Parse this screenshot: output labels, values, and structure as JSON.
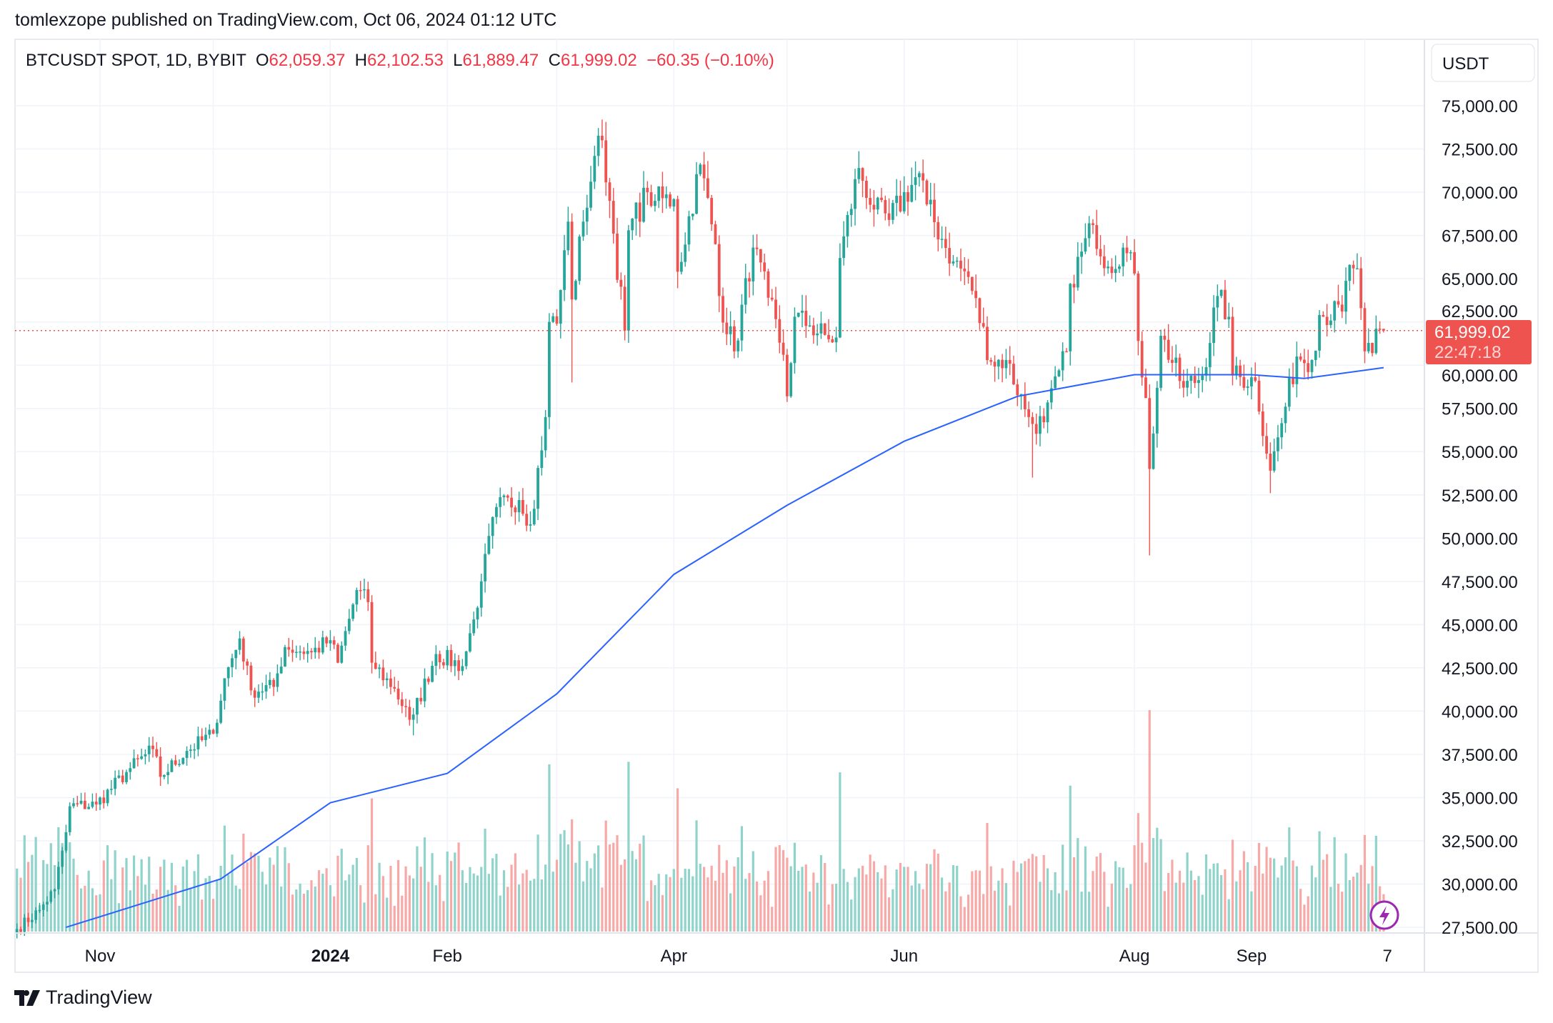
{
  "header": {
    "published": "tomlexzope published on TradingView.com, Oct 06, 2024 01:12 UTC"
  },
  "legend": {
    "symbol": "BTCUSDT SPOT, 1D, BYBIT",
    "open_label": "O",
    "open": "62,059.37",
    "high_label": "H",
    "high": "62,102.53",
    "low_label": "L",
    "low": "61,889.47",
    "close_label": "C",
    "close": "61,999.02",
    "change": "−60.35 (−0.10%)"
  },
  "price_axis": {
    "currency": "USDT",
    "last_price": "61,999.02",
    "countdown": "22:47:18"
  },
  "footer": {
    "brand": "TradingView"
  },
  "colors": {
    "up": "#26a69a",
    "down": "#ef5350",
    "ma": "#2962ff",
    "last_price_bg": "#ef5350",
    "volume_up": "#8fd3cb",
    "volume_down": "#f7a9a7"
  },
  "icons": {
    "logo": "tradingview-logo-icon",
    "lightning": "lightning-icon"
  },
  "chart_data": {
    "type": "candlestick",
    "symbol": "BTCUSDT",
    "interval": "1D",
    "ylim": [
      27500,
      76000
    ],
    "y_ticks": [
      "75,000.00",
      "72,500.00",
      "70,000.00",
      "67,500.00",
      "65,000.00",
      "62,500.00",
      "60,000.00",
      "57,500.00",
      "55,000.00",
      "52,500.00",
      "50,000.00",
      "47,500.00",
      "45,000.00",
      "42,500.00",
      "40,000.00",
      "37,500.00",
      "35,000.00",
      "32,500.00",
      "30,000.00",
      "27,500.00"
    ],
    "x_ticks": [
      {
        "label": "Nov",
        "date": "2023-11-01",
        "bold": false
      },
      {
        "label": "2024",
        "date": "2024-01-01",
        "bold": true
      },
      {
        "label": "Feb",
        "date": "2024-02-01",
        "bold": false
      },
      {
        "label": "Apr",
        "date": "2024-04-01",
        "bold": false
      },
      {
        "label": "Jun",
        "date": "2024-06-01",
        "bold": false
      },
      {
        "label": "Aug",
        "date": "2024-08-01",
        "bold": false
      },
      {
        "label": "Sep",
        "date": "2024-09-01",
        "bold": false
      },
      {
        "label": "7",
        "date": "2024-10-07",
        "bold": false
      }
    ],
    "grid": true,
    "close_anchors": [
      [
        "2023-10-10",
        27400
      ],
      [
        "2023-10-16",
        28500
      ],
      [
        "2023-10-20",
        29700
      ],
      [
        "2023-10-23",
        33000
      ],
      [
        "2023-10-24",
        34500
      ],
      [
        "2023-10-31",
        34600
      ],
      [
        "2023-11-09",
        36700
      ],
      [
        "2023-11-15",
        37800
      ],
      [
        "2023-11-17",
        36200
      ],
      [
        "2023-11-24",
        37700
      ],
      [
        "2023-12-01",
        38700
      ],
      [
        "2023-12-04",
        41900
      ],
      [
        "2023-12-08",
        44200
      ],
      [
        "2023-12-11",
        41200
      ],
      [
        "2023-12-17",
        41400
      ],
      [
        "2023-12-20",
        43700
      ],
      [
        "2023-12-27",
        43400
      ],
      [
        "2024-01-01",
        44100
      ],
      [
        "2024-01-03",
        42800
      ],
      [
        "2024-01-08",
        47000
      ],
      [
        "2024-01-11",
        46300
      ],
      [
        "2024-01-12",
        42800
      ],
      [
        "2024-01-18",
        41300
      ],
      [
        "2024-01-22",
        39500
      ],
      [
        "2024-01-23",
        39800
      ],
      [
        "2024-01-29",
        43300
      ],
      [
        "2024-02-05",
        42600
      ],
      [
        "2024-02-08",
        45300
      ],
      [
        "2024-02-10",
        47500
      ],
      [
        "2024-02-14",
        51800
      ],
      [
        "2024-02-20",
        52200
      ],
      [
        "2024-02-23",
        50800
      ],
      [
        "2024-02-27",
        57000
      ],
      [
        "2024-02-28",
        62500
      ],
      [
        "2024-03-01",
        62400
      ],
      [
        "2024-03-04",
        68300
      ],
      [
        "2024-03-05",
        63800
      ],
      [
        "2024-03-08",
        68300
      ],
      [
        "2024-03-11",
        72100
      ],
      [
        "2024-03-13",
        73000
      ],
      [
        "2024-03-15",
        69500
      ],
      [
        "2024-03-19",
        62000
      ],
      [
        "2024-03-20",
        67800
      ],
      [
        "2024-03-25",
        70000
      ],
      [
        "2024-03-27",
        69500
      ],
      [
        "2024-04-01",
        69600
      ],
      [
        "2024-04-02",
        65400
      ],
      [
        "2024-04-08",
        71600
      ],
      [
        "2024-04-12",
        67000
      ],
      [
        "2024-04-13",
        64000
      ],
      [
        "2024-04-17",
        60800
      ],
      [
        "2024-04-22",
        66800
      ],
      [
        "2024-04-26",
        63900
      ],
      [
        "2024-04-30",
        60600
      ],
      [
        "2024-05-01",
        58200
      ],
      [
        "2024-05-03",
        62800
      ],
      [
        "2024-05-07",
        62300
      ],
      [
        "2024-05-12",
        61500
      ],
      [
        "2024-05-14",
        61600
      ],
      [
        "2024-05-15",
        66200
      ],
      [
        "2024-05-20",
        71400
      ],
      [
        "2024-05-24",
        69000
      ],
      [
        "2024-05-28",
        68400
      ],
      [
        "2024-06-05",
        71100
      ],
      [
        "2024-06-07",
        69300
      ],
      [
        "2024-06-11",
        67300
      ],
      [
        "2024-06-14",
        66000
      ],
      [
        "2024-06-18",
        65100
      ],
      [
        "2024-06-24",
        60200
      ],
      [
        "2024-06-28",
        60300
      ],
      [
        "2024-07-04",
        57000
      ],
      [
        "2024-07-05",
        56600
      ],
      [
        "2024-07-08",
        56700
      ],
      [
        "2024-07-14",
        60800
      ],
      [
        "2024-07-15",
        64700
      ],
      [
        "2024-07-21",
        68100
      ],
      [
        "2024-07-25",
        65700
      ],
      [
        "2024-07-29",
        66800
      ],
      [
        "2024-08-01",
        65300
      ],
      [
        "2024-08-02",
        61400
      ],
      [
        "2024-08-04",
        58100
      ],
      [
        "2024-08-05",
        54000
      ],
      [
        "2024-08-08",
        61700
      ],
      [
        "2024-08-14",
        58700
      ],
      [
        "2024-08-19",
        59400
      ],
      [
        "2024-08-23",
        64000
      ],
      [
        "2024-08-26",
        62800
      ],
      [
        "2024-08-27",
        59400
      ],
      [
        "2024-09-02",
        59100
      ],
      [
        "2024-09-06",
        53900
      ],
      [
        "2024-09-10",
        57600
      ],
      [
        "2024-09-13",
        60500
      ],
      [
        "2024-09-17",
        60300
      ],
      [
        "2024-09-19",
        62900
      ],
      [
        "2024-09-25",
        63100
      ],
      [
        "2024-09-27",
        65800
      ],
      [
        "2024-09-29",
        65600
      ],
      [
        "2024-09-30",
        63300
      ],
      [
        "2024-10-01",
        60800
      ],
      [
        "2024-10-03",
        60700
      ],
      [
        "2024-10-05",
        62100
      ],
      [
        "2024-10-06",
        61999
      ]
    ],
    "notable_wicks": [
      [
        "2024-08-05",
        49000
      ],
      [
        "2024-07-05",
        53500
      ],
      [
        "2024-09-06",
        52600
      ],
      [
        "2024-01-23",
        38600
      ],
      [
        "2024-03-05",
        59000
      ]
    ],
    "moving_average": [
      [
        "2023-10-23",
        27500
      ],
      [
        "2023-12-03",
        30300
      ],
      [
        "2024-01-01",
        34700
      ],
      [
        "2024-02-01",
        36400
      ],
      [
        "2024-03-01",
        41000
      ],
      [
        "2024-04-01",
        47900
      ],
      [
        "2024-05-01",
        51900
      ],
      [
        "2024-06-01",
        55600
      ],
      [
        "2024-07-01",
        58200
      ],
      [
        "2024-08-01",
        59450
      ],
      [
        "2024-09-01",
        59450
      ],
      [
        "2024-09-15",
        59230
      ],
      [
        "2024-10-06",
        59860
      ]
    ],
    "last_price": 61999.02
  }
}
